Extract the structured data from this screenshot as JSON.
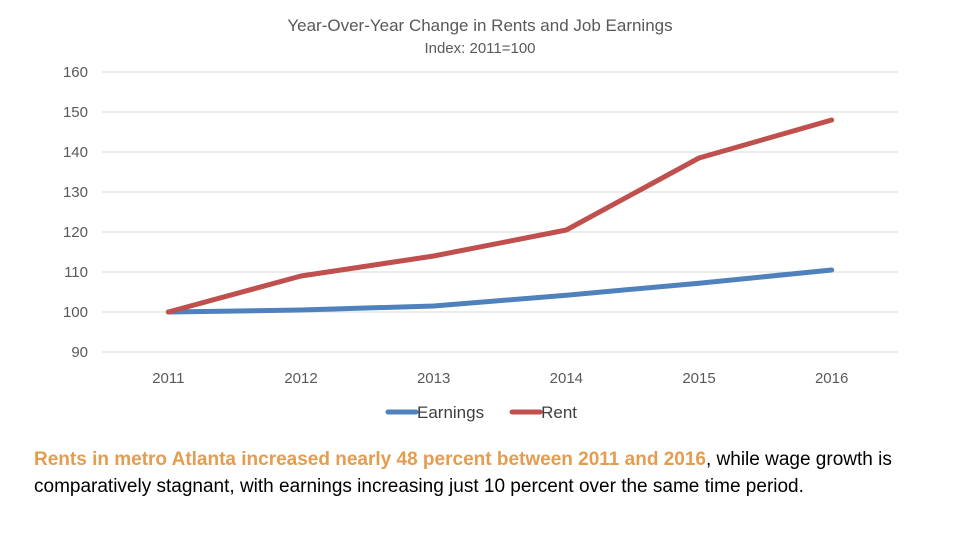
{
  "chart_data": {
    "type": "line",
    "title": "Year-Over-Year  Change in Rents and Job Earnings",
    "subtitle": "Index: 2011=100",
    "categories": [
      "2011",
      "2012",
      "2013",
      "2014",
      "2015",
      "2016"
    ],
    "ylim": [
      90,
      160
    ],
    "yticks": [
      90,
      100,
      110,
      120,
      130,
      140,
      150,
      160
    ],
    "grid": true,
    "legend_position": "bottom",
    "series": [
      {
        "name": "Earnings",
        "color": "#4f81bd",
        "values": [
          100,
          100.5,
          101.5,
          104.2,
          107.2,
          110.5
        ]
      },
      {
        "name": "Rent",
        "color": "#c0504d",
        "values": [
          100,
          109,
          114,
          120.5,
          138.5,
          148
        ]
      }
    ]
  },
  "caption": {
    "highlight": "Rents in metro Atlanta increased nearly 48 percent between 2011 and 2016",
    "rest": ", while wage growth is comparatively stagnant, with earnings increasing just 10 percent over the same time period.",
    "highlight_color": "#e59c4f"
  }
}
